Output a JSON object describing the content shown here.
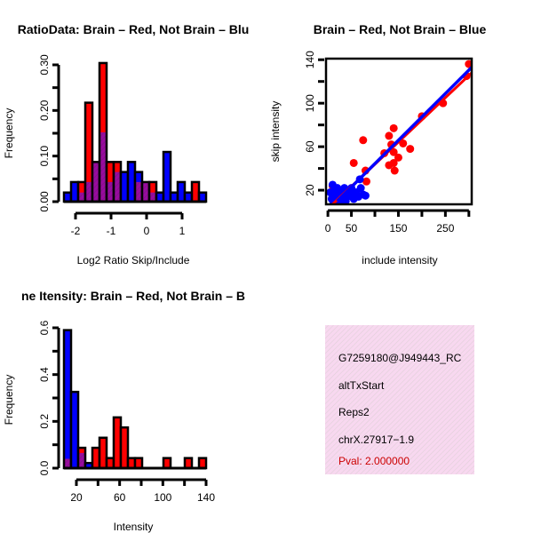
{
  "colors": {
    "red": "#ff0000",
    "blue": "#0000ff",
    "purple": "#9a0aa0",
    "info_bg": "#f8d8f0",
    "pval": "#cc0000"
  },
  "chart_data": [
    {
      "type": "bar",
      "title": "RatioData: Brain – Red, Not Brain – Blu",
      "xlabel": "Log2 Ratio Skip/Include",
      "ylabel": "Frequency",
      "xlim": [
        -2.325,
        1.675
      ],
      "ylim": [
        0,
        0.3
      ],
      "bin_start": -2.325,
      "bin_width": 0.2,
      "xticks": [
        "-2",
        "-1",
        "0",
        "1"
      ],
      "xtick_values": [
        -2,
        -1,
        0,
        1
      ],
      "yticks": [
        "0.00",
        "0.10",
        "0.20",
        "0.30"
      ],
      "ytick_values": [
        0,
        0.05,
        0.1,
        0.15,
        0.2,
        0.25,
        0.3
      ],
      "series": [
        {
          "name": "Brain",
          "values": [
            0,
            0,
            0.043,
            0.217,
            0.087,
            0.304,
            0.087,
            0.087,
            0,
            0,
            0.043,
            0.043,
            0.043,
            0,
            0,
            0,
            0,
            0,
            0.043,
            0
          ]
        },
        {
          "name": "Not Brain",
          "values": [
            0.02,
            0.043,
            0.02,
            0.043,
            0.087,
            0.152,
            0.043,
            0.065,
            0.065,
            0.087,
            0.065,
            0.043,
            0.02,
            0.02,
            0.109,
            0.02,
            0.043,
            0.02,
            0,
            0.02
          ]
        }
      ]
    },
    {
      "type": "scatter",
      "title": "Brain – Red, Not Brain – Blue",
      "xlabel": "include intensity",
      "ylabel": "skip intensity",
      "xlim": [
        -4,
        306
      ],
      "ylim": [
        7,
        141
      ],
      "xticks": [
        "0",
        "50",
        "150",
        "250"
      ],
      "xtick_values": [
        0,
        50,
        100,
        150,
        200,
        250,
        300
      ],
      "xtick_labeled": [
        0,
        50,
        150,
        250
      ],
      "yticks": [
        "20",
        "60",
        "100",
        "140"
      ],
      "ytick_values": [
        20,
        40,
        60,
        80,
        100,
        120,
        140
      ],
      "ytick_labeled": [
        20,
        60,
        100,
        140
      ],
      "series": [
        {
          "name": "Brain",
          "points": [
            [
              300,
              136
            ],
            [
              295,
              125
            ],
            [
              245,
              100
            ],
            [
              200,
              88
            ],
            [
              140,
              77
            ],
            [
              130,
              70
            ],
            [
              75,
              66
            ],
            [
              55,
              45
            ],
            [
              80,
              38
            ],
            [
              82,
              28
            ],
            [
              120,
              54
            ],
            [
              135,
              62
            ],
            [
              140,
              55
            ],
            [
              150,
              50
            ],
            [
              160,
              63
            ],
            [
              175,
              58
            ],
            [
              130,
              43
            ],
            [
              140,
              45
            ],
            [
              142,
              38
            ],
            [
              10,
              24
            ],
            [
              18,
              14
            ],
            [
              30,
              18
            ]
          ],
          "fit": [
            [
              5,
              5
            ],
            [
              306,
              128
            ]
          ]
        },
        {
          "name": "Not Brain",
          "points": [
            [
              5,
              18
            ],
            [
              8,
              12
            ],
            [
              10,
              25
            ],
            [
              12,
              16
            ],
            [
              15,
              20
            ],
            [
              18,
              10
            ],
            [
              20,
              22
            ],
            [
              22,
              14
            ],
            [
              25,
              18
            ],
            [
              28,
              12
            ],
            [
              30,
              20
            ],
            [
              32,
              16
            ],
            [
              35,
              22
            ],
            [
              38,
              10
            ],
            [
              40,
              18
            ],
            [
              42,
              14
            ],
            [
              45,
              20
            ],
            [
              48,
              16
            ],
            [
              50,
              22
            ],
            [
              55,
              12
            ],
            [
              60,
              18
            ],
            [
              65,
              14
            ],
            [
              68,
              30
            ],
            [
              70,
              22
            ],
            [
              75,
              16
            ],
            [
              80,
              15
            ],
            [
              12,
              8
            ],
            [
              25,
              9
            ],
            [
              15,
              14
            ],
            [
              35,
              13
            ]
          ],
          "fit": [
            [
              20,
              10
            ],
            [
              306,
              133
            ]
          ]
        }
      ]
    },
    {
      "type": "bar",
      "title": "ne Itensity: Brain – Red, Not Brain – B",
      "xlabel": "Intensity",
      "ylabel": "Frequency",
      "xlim": [
        8.5,
        140
      ],
      "ylim": [
        0,
        0.6
      ],
      "bin_start": 8.5,
      "bin_width": 6.575,
      "xticks": [
        "20",
        "60",
        "100",
        "140"
      ],
      "xtick_values": [
        20,
        40,
        60,
        80,
        100,
        120,
        140
      ],
      "xtick_labeled": [
        20,
        60,
        100,
        140
      ],
      "yticks": [
        "0.0",
        "0.2",
        "0.4",
        "0.6"
      ],
      "ytick_values": [
        0,
        0.1,
        0.2,
        0.3,
        0.4,
        0.5,
        0.6
      ],
      "ytick_labeled": [
        0,
        0.2,
        0.4,
        0.6
      ],
      "series": [
        {
          "name": "Brain",
          "values": [
            0.04,
            0,
            0.087,
            0,
            0.087,
            0.13,
            0.043,
            0.217,
            0.174,
            0.043,
            0.043,
            0,
            0,
            0,
            0.043,
            0,
            0,
            0.043,
            0,
            0.043
          ]
        },
        {
          "name": "Not Brain",
          "values": [
            0.59,
            0.326,
            0.065,
            0.022,
            0,
            0,
            0,
            0,
            0,
            0,
            0,
            0,
            0,
            0,
            0,
            0,
            0,
            0,
            0,
            0
          ]
        }
      ]
    }
  ],
  "info": {
    "id": "G7259180@J949443_RC",
    "type": "altTxStart",
    "reps": "Reps2",
    "location": "chrX.27917−1.9",
    "pval": "Pval: 2.000000"
  }
}
